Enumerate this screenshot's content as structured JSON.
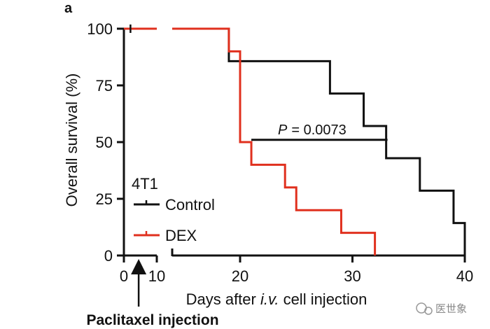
{
  "panel_label": "a",
  "watermark": "医世象",
  "chart_data": {
    "type": "line",
    "subtype": "kaplan-meier survival",
    "title": "",
    "xlabel_prefix": "Days after ",
    "xlabel_italic": "i.v.",
    "xlabel_suffix": " cell injection",
    "ylabel": "Overall survival (%)",
    "xlim": [
      0,
      40
    ],
    "ylim": [
      0,
      100
    ],
    "x_axis_break": [
      10,
      15
    ],
    "xticks": [
      0,
      10,
      20,
      30,
      40
    ],
    "xtick_labels": [
      "0",
      "10",
      "20",
      "30",
      "40"
    ],
    "yticks": [
      0,
      25,
      50,
      75,
      100
    ],
    "ytick_labels": [
      "0",
      "25",
      "50",
      "75",
      "100"
    ],
    "legend_title": "4T1",
    "legend_position": "bottom-left",
    "series": [
      {
        "name": "Control",
        "color": "#111111",
        "x": [
          0,
          19,
          28,
          31,
          33,
          36,
          39,
          40
        ],
        "y": [
          100,
          85.7,
          71.4,
          57.1,
          42.9,
          28.6,
          14.3,
          0
        ]
      },
      {
        "name": "DEX",
        "color": "#e0301e",
        "x": [
          0,
          19,
          20,
          21,
          24,
          25,
          29,
          32
        ],
        "y": [
          100,
          90,
          50,
          40,
          30,
          20,
          10,
          0
        ]
      }
    ],
    "censor_marks": [
      {
        "series": "Control",
        "x": 2,
        "y": 100
      }
    ],
    "annotation": {
      "p_label": "P",
      "p_value": "= 0.0073",
      "x_range": [
        21,
        32
      ],
      "y": 51
    },
    "treatment": {
      "label": "Paclitaxel injection",
      "x": 3
    }
  }
}
